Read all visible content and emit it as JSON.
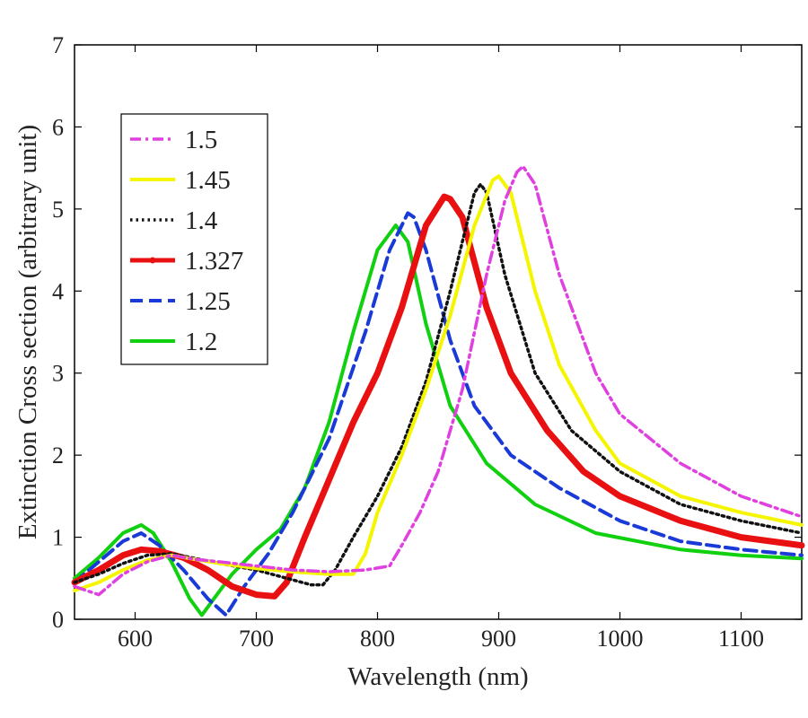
{
  "chart_data": {
    "type": "line",
    "title": "",
    "xlabel": "Wavelength (nm)",
    "ylabel": "Extinction Cross section (arbitrary unit)",
    "xlim": [
      550,
      1150
    ],
    "ylim": [
      0,
      7
    ],
    "x_ticks": [
      "600",
      "700",
      "800",
      "900",
      "1000",
      "1100"
    ],
    "y_ticks": [
      "0",
      "1",
      "2",
      "3",
      "4",
      "5",
      "6",
      "7"
    ],
    "legend_position": "top-left",
    "series": [
      {
        "name": "1.5",
        "color": "#e040e0",
        "style": "dashdot",
        "x": [
          550,
          570,
          590,
          610,
          630,
          650,
          670,
          700,
          730,
          760,
          790,
          810,
          820,
          835,
          850,
          870,
          890,
          905,
          915,
          920,
          930,
          950,
          980,
          1000,
          1050,
          1100,
          1150
        ],
        "y": [
          0.4,
          0.3,
          0.55,
          0.7,
          0.78,
          0.73,
          0.7,
          0.65,
          0.6,
          0.58,
          0.6,
          0.65,
          0.9,
          1.3,
          1.8,
          2.8,
          4.2,
          5.1,
          5.45,
          5.52,
          5.3,
          4.2,
          3.0,
          2.5,
          1.9,
          1.5,
          1.25
        ]
      },
      {
        "name": "1.45",
        "color": "#f5f500",
        "style": "solid",
        "x": [
          550,
          570,
          590,
          610,
          630,
          650,
          670,
          700,
          730,
          760,
          780,
          790,
          800,
          820,
          840,
          860,
          880,
          895,
          900,
          910,
          930,
          950,
          980,
          1000,
          1050,
          1100,
          1150
        ],
        "y": [
          0.35,
          0.45,
          0.6,
          0.72,
          0.78,
          0.73,
          0.68,
          0.62,
          0.58,
          0.55,
          0.55,
          0.8,
          1.3,
          2.0,
          2.8,
          3.7,
          4.8,
          5.35,
          5.4,
          5.2,
          4.0,
          3.1,
          2.3,
          1.9,
          1.5,
          1.3,
          1.15
        ]
      },
      {
        "name": "1.4",
        "color": "#111111",
        "style": "dotted",
        "x": [
          550,
          570,
          590,
          610,
          630,
          650,
          670,
          700,
          730,
          745,
          755,
          765,
          780,
          800,
          820,
          840,
          860,
          880,
          885,
          890,
          905,
          930,
          960,
          1000,
          1050,
          1100,
          1150
        ],
        "y": [
          0.45,
          0.55,
          0.68,
          0.78,
          0.8,
          0.74,
          0.68,
          0.6,
          0.48,
          0.42,
          0.42,
          0.6,
          1.0,
          1.5,
          2.1,
          2.9,
          4.0,
          5.2,
          5.3,
          5.2,
          4.2,
          3.0,
          2.3,
          1.8,
          1.4,
          1.2,
          1.05
        ]
      },
      {
        "name": "1.327",
        "color": "#e81010",
        "style": "solid-marker",
        "x": [
          550,
          570,
          590,
          605,
          620,
          640,
          660,
          680,
          700,
          715,
          725,
          740,
          760,
          780,
          800,
          820,
          840,
          855,
          860,
          870,
          890,
          910,
          940,
          970,
          1000,
          1050,
          1100,
          1150
        ],
        "y": [
          0.45,
          0.6,
          0.78,
          0.85,
          0.83,
          0.75,
          0.6,
          0.4,
          0.3,
          0.28,
          0.45,
          1.0,
          1.7,
          2.4,
          3.0,
          3.8,
          4.8,
          5.15,
          5.12,
          4.9,
          3.8,
          3.0,
          2.3,
          1.8,
          1.5,
          1.2,
          1.0,
          0.9
        ]
      },
      {
        "name": "1.25",
        "color": "#1a3ad8",
        "style": "dashed",
        "x": [
          550,
          570,
          590,
          605,
          620,
          640,
          660,
          675,
          690,
          710,
          730,
          760,
          790,
          810,
          825,
          830,
          840,
          860,
          880,
          910,
          950,
          1000,
          1050,
          1100,
          1150
        ],
        "y": [
          0.45,
          0.7,
          0.95,
          1.05,
          0.9,
          0.6,
          0.25,
          0.05,
          0.4,
          0.8,
          1.3,
          2.2,
          3.5,
          4.5,
          4.95,
          4.9,
          4.5,
          3.4,
          2.6,
          2.0,
          1.6,
          1.2,
          0.95,
          0.85,
          0.78
        ]
      },
      {
        "name": "1.2",
        "color": "#10d010",
        "style": "solid",
        "x": [
          550,
          570,
          590,
          605,
          615,
          630,
          645,
          655,
          665,
          680,
          700,
          720,
          740,
          760,
          780,
          800,
          815,
          825,
          840,
          860,
          890,
          930,
          980,
          1050,
          1100,
          1150
        ],
        "y": [
          0.5,
          0.75,
          1.05,
          1.15,
          1.05,
          0.7,
          0.25,
          0.05,
          0.25,
          0.55,
          0.85,
          1.1,
          1.6,
          2.4,
          3.5,
          4.5,
          4.8,
          4.6,
          3.6,
          2.6,
          1.9,
          1.4,
          1.05,
          0.85,
          0.78,
          0.74
        ]
      }
    ]
  }
}
